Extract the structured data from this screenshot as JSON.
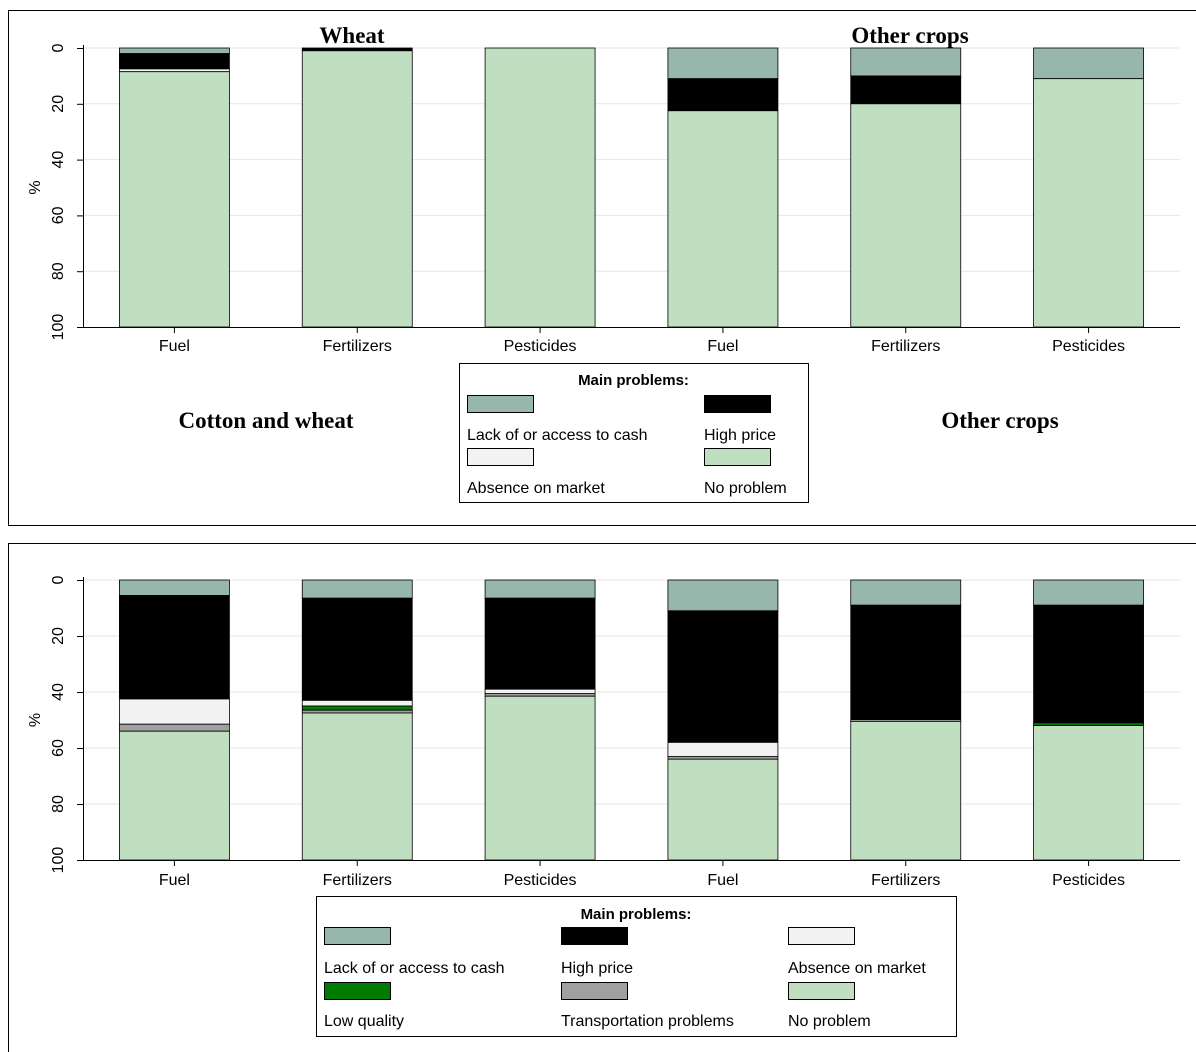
{
  "colors": {
    "lack_cash": "#98b7ac",
    "high_price": "#000000",
    "absence": "#f2f2f2",
    "low_quality": "#007a00",
    "transport": "#a0a0a0",
    "no_problem": "#c0dec0",
    "grid": "#e6e6e6"
  },
  "chart_data": [
    {
      "type": "bar",
      "stacked": true,
      "orientation": "vertical",
      "y_inverted": true,
      "ylabel": "%",
      "ylim": [
        0,
        100
      ],
      "yticks": [
        0,
        20,
        40,
        60,
        80,
        100
      ],
      "grid": true,
      "categories": [
        "Fuel",
        "Fertilizers",
        "Pesticides",
        "Fuel",
        "Fertilizers",
        "Pesticides"
      ],
      "annotations": [
        "Wheat",
        "Other crops",
        "Cotton and wheat",
        "Other crops"
      ],
      "legend": {
        "title": "Main problems:",
        "placement": "bottom-center",
        "entries": [
          {
            "label": "Lack of or access to cash",
            "key": "lack_cash"
          },
          {
            "label": "High price",
            "key": "high_price"
          },
          {
            "label": "Absence on market",
            "key": "absence"
          },
          {
            "label": "No problem",
            "key": "no_problem"
          }
        ]
      },
      "series": [
        {
          "name": "Lack of or access to cash",
          "key": "lack_cash",
          "values": [
            2,
            0,
            0,
            11,
            10,
            11
          ]
        },
        {
          "name": "High price",
          "key": "high_price",
          "values": [
            5.5,
            1,
            0,
            11.5,
            10,
            0
          ]
        },
        {
          "name": "Absence on market",
          "key": "absence",
          "values": [
            1,
            0,
            0,
            0,
            0,
            0
          ]
        },
        {
          "name": "No problem",
          "key": "no_problem",
          "values": [
            91.5,
            99,
            100,
            77.5,
            80,
            89
          ]
        }
      ]
    },
    {
      "type": "bar",
      "stacked": true,
      "orientation": "vertical",
      "y_inverted": true,
      "ylabel": "%",
      "ylim": [
        0,
        100
      ],
      "yticks": [
        0,
        20,
        40,
        60,
        80,
        100
      ],
      "grid": true,
      "categories": [
        "Fuel",
        "Fertilizers",
        "Pesticides",
        "Fuel",
        "Fertilizers",
        "Pesticides"
      ],
      "legend": {
        "title": "Main problems:",
        "placement": "bottom-center",
        "entries": [
          {
            "label": "Lack of or access to cash",
            "key": "lack_cash"
          },
          {
            "label": "High price",
            "key": "high_price"
          },
          {
            "label": "Absence on market",
            "key": "absence"
          },
          {
            "label": "Low quality",
            "key": "low_quality"
          },
          {
            "label": "Transportation problems",
            "key": "transport"
          },
          {
            "label": "No problem",
            "key": "no_problem"
          }
        ]
      },
      "series": [
        {
          "name": "Lack of or access to cash",
          "key": "lack_cash",
          "values": [
            5.5,
            6.5,
            6.5,
            11,
            9,
            9
          ]
        },
        {
          "name": "High price",
          "key": "high_price",
          "values": [
            37,
            36.5,
            32.5,
            47,
            41,
            42
          ]
        },
        {
          "name": "Absence on market",
          "key": "absence",
          "values": [
            9,
            2,
            1.5,
            5,
            0.5,
            0
          ]
        },
        {
          "name": "Low quality",
          "key": "low_quality",
          "values": [
            0,
            1.5,
            0,
            0,
            0,
            1
          ]
        },
        {
          "name": "Transportation problems",
          "key": "transport",
          "values": [
            2.5,
            1,
            1,
            1,
            0,
            0
          ]
        },
        {
          "name": "No problem",
          "key": "no_problem",
          "values": [
            46,
            52.5,
            58.5,
            36,
            49.5,
            48
          ]
        }
      ]
    }
  ]
}
